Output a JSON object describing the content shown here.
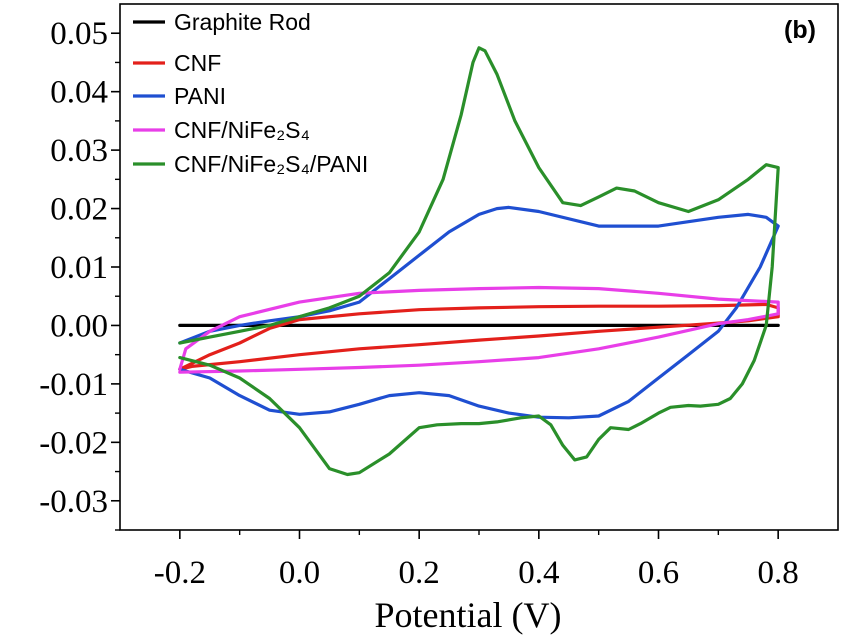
{
  "chart_data": {
    "type": "line",
    "panel_label": "(b)",
    "xlabel": "Potential (V)",
    "ylabel": "",
    "xlim": [
      -0.3,
      0.9
    ],
    "ylim": [
      -0.035,
      0.055
    ],
    "xticks": [
      -0.2,
      0.0,
      0.2,
      0.4,
      0.6,
      0.8
    ],
    "xtick_labels": [
      "-0.2",
      "0.0",
      "0.2",
      "0.4",
      "0.6",
      "0.8"
    ],
    "yticks": [
      -0.03,
      -0.02,
      -0.01,
      0.0,
      0.01,
      0.02,
      0.03,
      0.04,
      0.05
    ],
    "ytick_labels": [
      "-0.03",
      "-0.02",
      "-0.01",
      "0.00",
      "0.01",
      "0.02",
      "0.03",
      "0.04",
      "0.05"
    ],
    "grid": false,
    "legend_position": "top-left",
    "series": [
      {
        "name": "Graphite Rod",
        "color": "#000000",
        "x": [
          -0.2,
          0.0,
          0.2,
          0.4,
          0.6,
          0.8,
          0.6,
          0.4,
          0.2,
          0.0,
          -0.2
        ],
        "y": [
          0.0,
          0.0,
          0.0,
          0.0,
          0.0,
          0.0,
          0.0,
          0.0,
          0.0,
          0.0,
          0.0
        ]
      },
      {
        "name": "CNF",
        "color": "#e3201b",
        "x": [
          -0.2,
          -0.15,
          -0.1,
          -0.05,
          0.0,
          0.1,
          0.2,
          0.3,
          0.4,
          0.5,
          0.6,
          0.7,
          0.78,
          0.8,
          0.8,
          0.75,
          0.7,
          0.6,
          0.5,
          0.4,
          0.3,
          0.2,
          0.1,
          0.0,
          -0.1,
          -0.18,
          -0.2
        ],
        "y": [
          -0.0075,
          -0.005,
          -0.003,
          -0.0005,
          0.001,
          0.002,
          0.0027,
          0.003,
          0.0032,
          0.0033,
          0.0033,
          0.0034,
          0.0036,
          0.003,
          0.0015,
          0.0008,
          0.0004,
          -0.0003,
          -0.001,
          -0.0018,
          -0.0025,
          -0.0033,
          -0.004,
          -0.005,
          -0.0062,
          -0.007,
          -0.0075
        ]
      },
      {
        "name": "PANI",
        "color": "#1f4fd1",
        "x": [
          -0.2,
          -0.15,
          -0.1,
          -0.05,
          0.0,
          0.05,
          0.1,
          0.15,
          0.2,
          0.25,
          0.3,
          0.33,
          0.35,
          0.4,
          0.5,
          0.6,
          0.7,
          0.75,
          0.78,
          0.8,
          0.77,
          0.73,
          0.7,
          0.65,
          0.6,
          0.55,
          0.5,
          0.45,
          0.4,
          0.35,
          0.3,
          0.25,
          0.2,
          0.15,
          0.1,
          0.05,
          0.0,
          -0.05,
          -0.1,
          -0.15,
          -0.2
        ],
        "y": [
          -0.003,
          -0.001,
          0.0,
          0.0008,
          0.0015,
          0.0025,
          0.004,
          0.008,
          0.012,
          0.016,
          0.019,
          0.02,
          0.0202,
          0.0195,
          0.017,
          0.017,
          0.0185,
          0.019,
          0.0185,
          0.017,
          0.01,
          0.003,
          -0.001,
          -0.005,
          -0.009,
          -0.013,
          -0.0155,
          -0.0158,
          -0.0157,
          -0.015,
          -0.0138,
          -0.012,
          -0.0115,
          -0.012,
          -0.0135,
          -0.0148,
          -0.0152,
          -0.0145,
          -0.012,
          -0.009,
          -0.0075
        ]
      },
      {
        "name": "CNF/NiFe₂S₄",
        "color": "#e83ee8",
        "x": [
          -0.2,
          -0.19,
          -0.15,
          -0.1,
          0.0,
          0.1,
          0.2,
          0.3,
          0.4,
          0.5,
          0.6,
          0.7,
          0.8,
          0.8,
          0.75,
          0.7,
          0.6,
          0.5,
          0.4,
          0.3,
          0.2,
          0.1,
          0.0,
          -0.1,
          -0.2
        ],
        "y": [
          -0.0075,
          -0.004,
          -0.001,
          0.0015,
          0.004,
          0.0055,
          0.006,
          0.0063,
          0.0065,
          0.0063,
          0.0055,
          0.0045,
          0.004,
          0.002,
          0.001,
          0.0003,
          -0.002,
          -0.004,
          -0.0055,
          -0.0062,
          -0.0068,
          -0.0072,
          -0.0075,
          -0.0078,
          -0.008
        ]
      },
      {
        "name": "CNF/NiFe₂S₄/PANI",
        "color": "#2a8f2a",
        "x": [
          -0.2,
          -0.15,
          -0.1,
          -0.05,
          0.0,
          0.05,
          0.1,
          0.15,
          0.2,
          0.24,
          0.27,
          0.29,
          0.3,
          0.31,
          0.33,
          0.36,
          0.4,
          0.44,
          0.47,
          0.5,
          0.53,
          0.56,
          0.6,
          0.65,
          0.7,
          0.75,
          0.78,
          0.8,
          0.79,
          0.78,
          0.76,
          0.74,
          0.72,
          0.7,
          0.67,
          0.65,
          0.62,
          0.6,
          0.57,
          0.55,
          0.52,
          0.5,
          0.48,
          0.46,
          0.44,
          0.42,
          0.4,
          0.37,
          0.33,
          0.3,
          0.27,
          0.23,
          0.2,
          0.15,
          0.1,
          0.08,
          0.05,
          0.0,
          -0.05,
          -0.1,
          -0.15,
          -0.2
        ],
        "y": [
          -0.003,
          -0.002,
          -0.001,
          0.0,
          0.0015,
          0.003,
          0.005,
          0.009,
          0.016,
          0.025,
          0.036,
          0.045,
          0.0475,
          0.047,
          0.043,
          0.035,
          0.027,
          0.021,
          0.0205,
          0.022,
          0.0235,
          0.023,
          0.021,
          0.0195,
          0.0215,
          0.025,
          0.0275,
          0.027,
          0.01,
          0.0,
          -0.006,
          -0.01,
          -0.0125,
          -0.0135,
          -0.0138,
          -0.0137,
          -0.014,
          -0.015,
          -0.0168,
          -0.0178,
          -0.0175,
          -0.0195,
          -0.0225,
          -0.023,
          -0.0205,
          -0.017,
          -0.0155,
          -0.0158,
          -0.0165,
          -0.0168,
          -0.0168,
          -0.017,
          -0.0175,
          -0.022,
          -0.0252,
          -0.0255,
          -0.0245,
          -0.0175,
          -0.0125,
          -0.009,
          -0.0068,
          -0.0055
        ]
      }
    ]
  }
}
